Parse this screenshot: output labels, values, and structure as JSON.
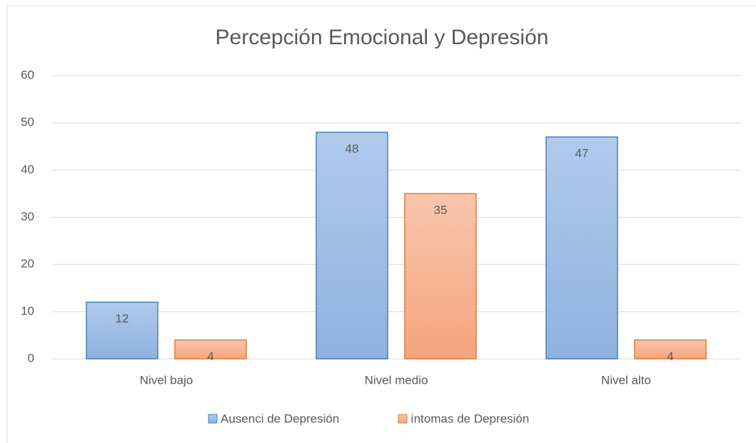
{
  "chart_data": {
    "type": "bar",
    "title": "Percepción Emocional y Depresión",
    "categories": [
      "Nivel bajo",
      "Nivel medio",
      "Nivel alto"
    ],
    "series": [
      {
        "name": "Ausenci de Depresión",
        "color": "#4a7ebb",
        "values": [
          12,
          48,
          47
        ]
      },
      {
        "name": "íntomas de Depresión",
        "color": "#e07b39",
        "values": [
          4,
          35,
          4
        ]
      }
    ],
    "ylim": [
      0,
      60
    ],
    "yticks": [
      0,
      10,
      20,
      30,
      40,
      50,
      60
    ],
    "grid": true,
    "legend": "bottom"
  }
}
